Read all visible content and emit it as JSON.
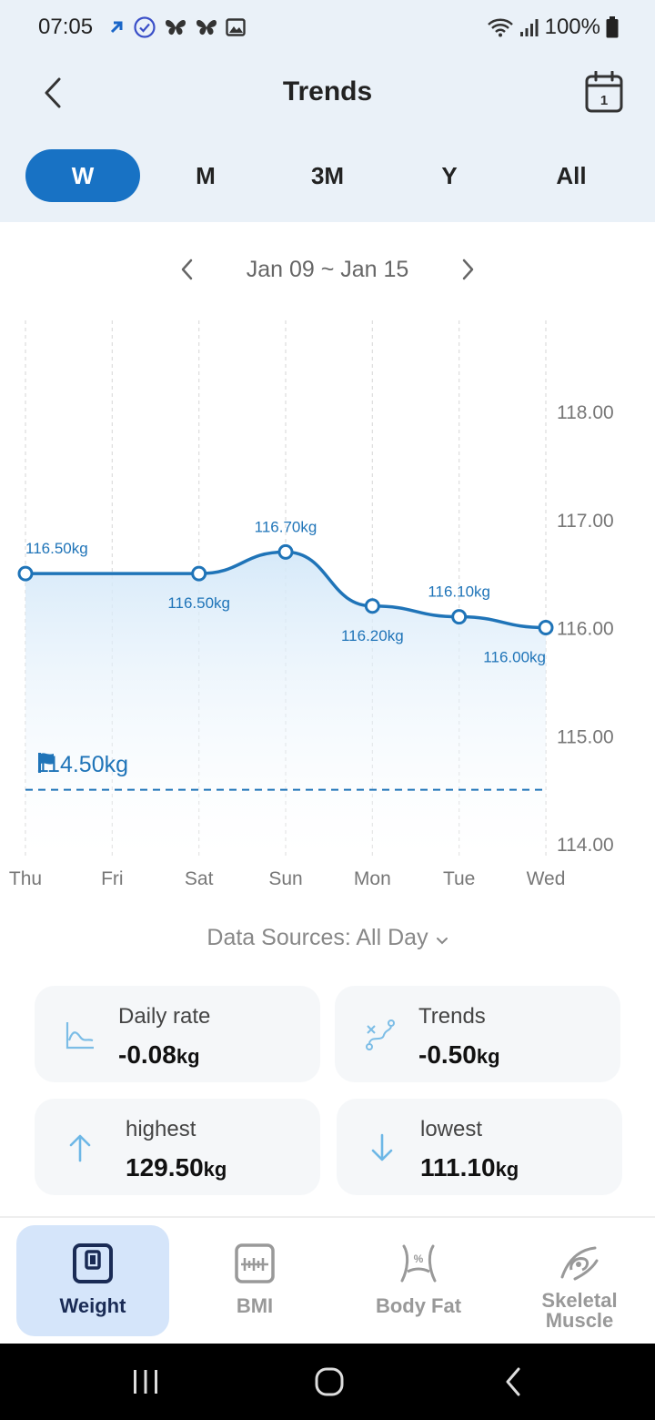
{
  "status_bar": {
    "time": "07:05",
    "battery": "100%"
  },
  "header": {
    "title": "Trends",
    "back_icon": "chevron-left-icon",
    "calendar_icon": "calendar-icon",
    "calendar_day": "1"
  },
  "tabs": [
    {
      "label": "W",
      "active": true
    },
    {
      "label": "M",
      "active": false
    },
    {
      "label": "3M",
      "active": false
    },
    {
      "label": "Y",
      "active": false
    },
    {
      "label": "All",
      "active": false
    }
  ],
  "range": {
    "label": "Jan 09 ~ Jan 15"
  },
  "chart_data": {
    "type": "area",
    "categories": [
      "Thu",
      "Fri",
      "Sat",
      "Sun",
      "Mon",
      "Tue",
      "Wed"
    ],
    "series": [
      {
        "points": [
          {
            "day": "Thu",
            "value": 116.5,
            "label": "116.50kg"
          },
          {
            "day": "Sat",
            "value": 116.5,
            "label": "116.50kg"
          },
          {
            "day": "Sun",
            "value": 116.7,
            "label": "116.70kg"
          },
          {
            "day": "Mon",
            "value": 116.2,
            "label": "116.20kg"
          },
          {
            "day": "Tue",
            "value": 116.1,
            "label": "116.10kg"
          },
          {
            "day": "Wed",
            "value": 116.0,
            "label": "116.00kg"
          }
        ]
      }
    ],
    "y_ticks": [
      "118.00",
      "117.00",
      "116.00",
      "115.00",
      "114.00"
    ],
    "ylim": [
      114,
      118
    ],
    "goal": {
      "value": 114.5,
      "label": "114.50kg"
    },
    "grid": "vertical-dashed",
    "color": "#1f74b8"
  },
  "sources": {
    "label": "Data Sources: All Day"
  },
  "stats": {
    "daily_rate": {
      "label": "Daily rate",
      "value": "-0.08",
      "unit": "kg",
      "icon": "line-chart-icon"
    },
    "trends": {
      "label": "Trends",
      "value": "-0.50",
      "unit": "kg",
      "icon": "trend-path-icon"
    },
    "highest": {
      "label": "highest",
      "value": "129.50",
      "unit": "kg",
      "icon": "arrow-up-icon"
    },
    "lowest": {
      "label": "lowest",
      "value": "111.10",
      "unit": "kg",
      "icon": "arrow-down-icon"
    }
  },
  "bottom_nav": [
    {
      "label": "Weight",
      "icon": "scale-icon",
      "active": true
    },
    {
      "label": "BMI",
      "icon": "bmi-gauge-icon",
      "active": false
    },
    {
      "label": "Body Fat",
      "icon": "body-fat-icon",
      "active": false
    },
    {
      "label": "Skeletal\nMuscle",
      "icon": "muscle-icon",
      "active": false
    }
  ],
  "colors": {
    "accent": "#1872c4",
    "header_bg": "#eaf1f8",
    "active_nav_bg": "#d5e5fa"
  }
}
